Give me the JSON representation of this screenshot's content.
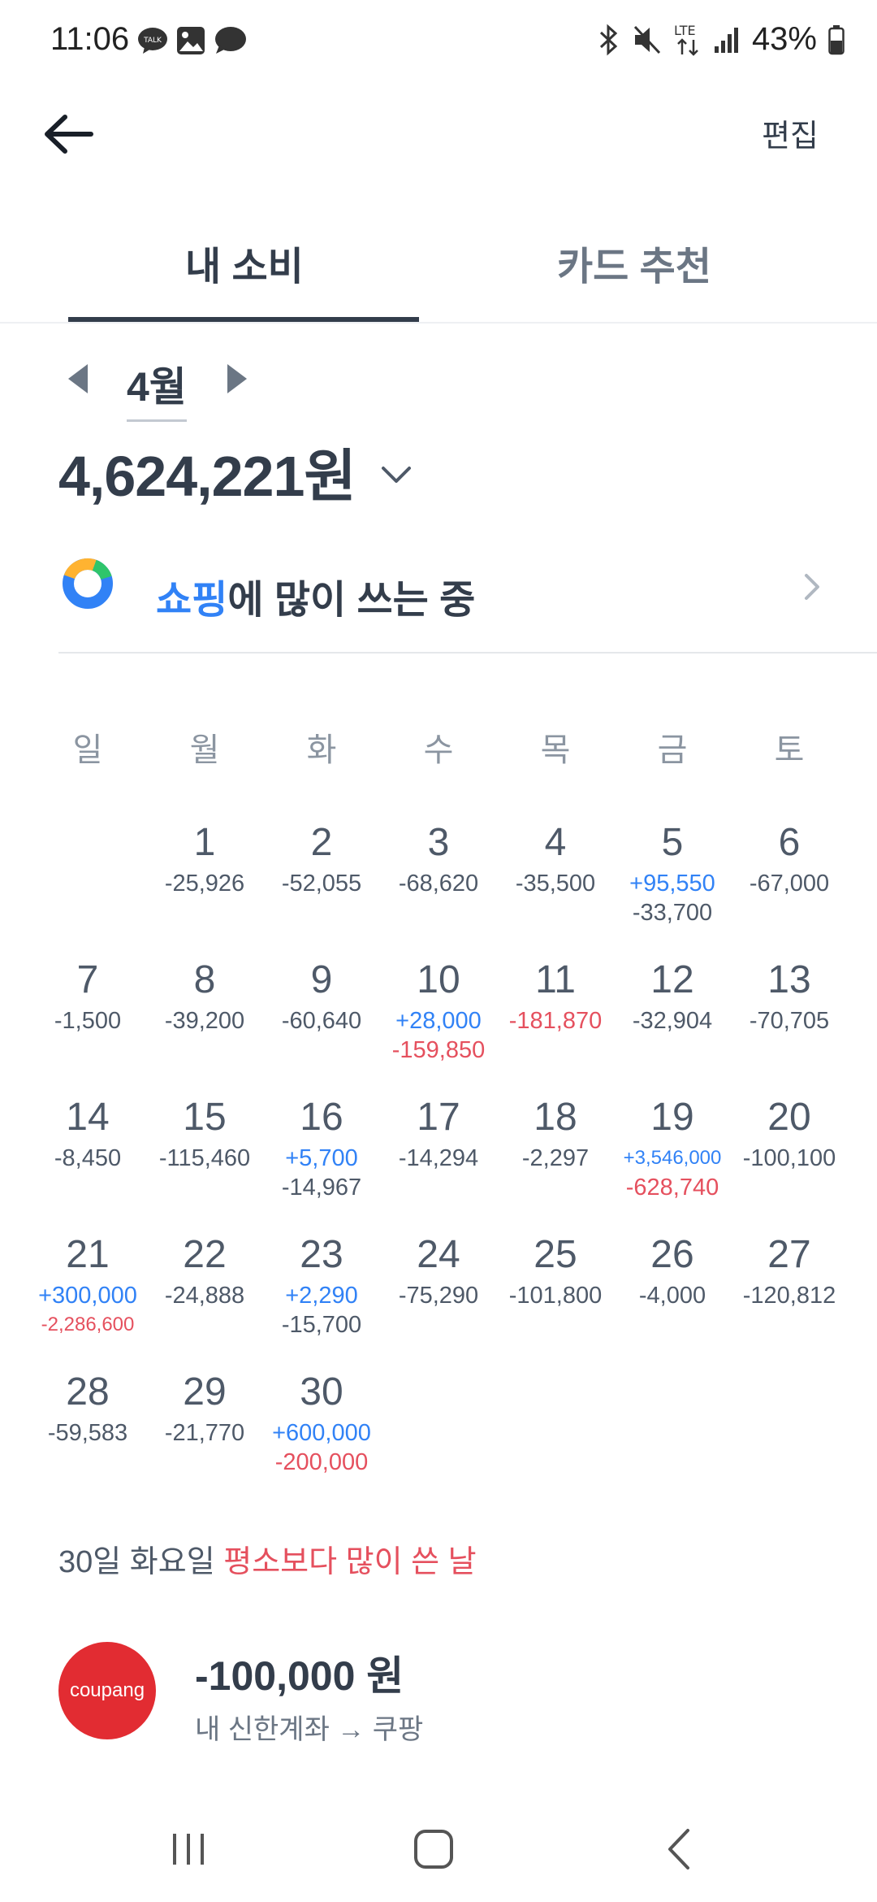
{
  "status_bar": {
    "time": "11:06",
    "battery": "43%",
    "left_icons": [
      "talk-icon",
      "gallery-icon",
      "messenger-icon"
    ],
    "right_icons": [
      "bluetooth-icon",
      "mute-icon",
      "lte-icon",
      "signal-icon",
      "battery-icon"
    ],
    "lte_label": "LTE"
  },
  "appbar": {
    "edit_label": "편집"
  },
  "tabs": [
    {
      "label": "내 소비",
      "active": true
    },
    {
      "label": "카드 추천",
      "active": false
    }
  ],
  "month": {
    "label": "4월"
  },
  "total": {
    "amount": "4,624,221원"
  },
  "insight": {
    "highlight": "쇼핑",
    "text": "에 많이 쓰는 중"
  },
  "weekdays": [
    "일",
    "월",
    "화",
    "수",
    "목",
    "금",
    "토"
  ],
  "calendar": {
    "days": [
      {
        "day": "",
        "lines": []
      },
      {
        "day": "1",
        "lines": [
          {
            "text": "-25,926",
            "type": "expense"
          }
        ]
      },
      {
        "day": "2",
        "lines": [
          {
            "text": "-52,055",
            "type": "expense"
          }
        ]
      },
      {
        "day": "3",
        "lines": [
          {
            "text": "-68,620",
            "type": "expense"
          }
        ]
      },
      {
        "day": "4",
        "lines": [
          {
            "text": "-35,500",
            "type": "expense"
          }
        ]
      },
      {
        "day": "5",
        "lines": [
          {
            "text": "+95,550",
            "type": "income"
          },
          {
            "text": "-33,700",
            "type": "expense"
          }
        ]
      },
      {
        "day": "6",
        "lines": [
          {
            "text": "-67,000",
            "type": "expense"
          }
        ]
      },
      {
        "day": "7",
        "lines": [
          {
            "text": "-1,500",
            "type": "expense"
          }
        ]
      },
      {
        "day": "8",
        "lines": [
          {
            "text": "-39,200",
            "type": "expense"
          }
        ]
      },
      {
        "day": "9",
        "lines": [
          {
            "text": "-60,640",
            "type": "expense"
          }
        ]
      },
      {
        "day": "10",
        "lines": [
          {
            "text": "+28,000",
            "type": "income"
          },
          {
            "text": "-159,850",
            "type": "high"
          }
        ]
      },
      {
        "day": "11",
        "lines": [
          {
            "text": "-181,870",
            "type": "high"
          }
        ]
      },
      {
        "day": "12",
        "lines": [
          {
            "text": "-32,904",
            "type": "expense"
          }
        ]
      },
      {
        "day": "13",
        "lines": [
          {
            "text": "-70,705",
            "type": "expense"
          }
        ]
      },
      {
        "day": "14",
        "lines": [
          {
            "text": "-8,450",
            "type": "expense"
          }
        ]
      },
      {
        "day": "15",
        "lines": [
          {
            "text": "-115,460",
            "type": "expense"
          }
        ]
      },
      {
        "day": "16",
        "lines": [
          {
            "text": "+5,700",
            "type": "income"
          },
          {
            "text": "-14,967",
            "type": "expense"
          }
        ]
      },
      {
        "day": "17",
        "lines": [
          {
            "text": "-14,294",
            "type": "expense"
          }
        ]
      },
      {
        "day": "18",
        "lines": [
          {
            "text": "-2,297",
            "type": "expense"
          }
        ]
      },
      {
        "day": "19",
        "lines": [
          {
            "text": "+3,546,000",
            "type": "income",
            "small": true
          },
          {
            "text": "-628,740",
            "type": "high"
          }
        ]
      },
      {
        "day": "20",
        "lines": [
          {
            "text": "-100,100",
            "type": "expense"
          }
        ]
      },
      {
        "day": "21",
        "lines": [
          {
            "text": "+300,000",
            "type": "income"
          },
          {
            "text": "-2,286,600",
            "type": "high",
            "small": true
          }
        ]
      },
      {
        "day": "22",
        "lines": [
          {
            "text": "-24,888",
            "type": "expense"
          }
        ]
      },
      {
        "day": "23",
        "lines": [
          {
            "text": "+2,290",
            "type": "income"
          },
          {
            "text": "-15,700",
            "type": "expense"
          }
        ]
      },
      {
        "day": "24",
        "lines": [
          {
            "text": "-75,290",
            "type": "expense"
          }
        ]
      },
      {
        "day": "25",
        "lines": [
          {
            "text": "-101,800",
            "type": "expense"
          }
        ]
      },
      {
        "day": "26",
        "lines": [
          {
            "text": "-4,000",
            "type": "expense"
          }
        ]
      },
      {
        "day": "27",
        "lines": [
          {
            "text": "-120,812",
            "type": "expense"
          }
        ]
      },
      {
        "day": "28",
        "lines": [
          {
            "text": "-59,583",
            "type": "expense"
          }
        ]
      },
      {
        "day": "29",
        "lines": [
          {
            "text": "-21,770",
            "type": "expense"
          }
        ]
      },
      {
        "day": "30",
        "lines": [
          {
            "text": "+600,000",
            "type": "income"
          },
          {
            "text": "-200,000",
            "type": "high"
          }
        ]
      }
    ]
  },
  "summary": {
    "prefix": "30일 화요일 ",
    "highlight": "평소보다 많이 쓴 날"
  },
  "transaction": {
    "logo_text": "coupang",
    "amount": "-100,000 원",
    "description": "내 신한계좌 → 쿠팡"
  },
  "colors": {
    "text_primary": "#333d4b",
    "income": "#3182f6",
    "high_expense": "#e5505e",
    "coupang": "#e22c32"
  }
}
